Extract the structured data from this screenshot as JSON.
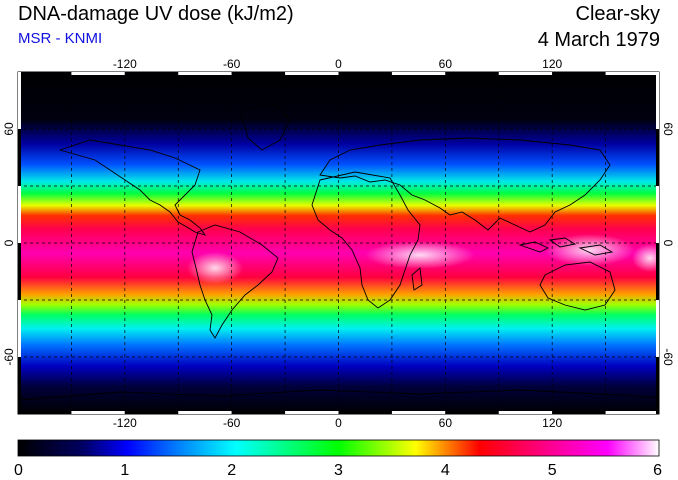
{
  "header": {
    "title": "DNA-damage UV dose (kJ/m2)",
    "source": "MSR - KNMI",
    "sky_type": "Clear-sky",
    "date": "4 March 1979"
  },
  "map": {
    "lon_ticks": [
      "-120",
      "-60",
      "0",
      "60",
      "120"
    ],
    "lat_ticks": [
      "60",
      "0",
      "-60"
    ],
    "lon_values": [
      -120,
      -60,
      0,
      60,
      120
    ],
    "lat_values": [
      60,
      0,
      -60
    ],
    "grid_lon": [
      -150,
      -120,
      -90,
      -60,
      -30,
      0,
      30,
      60,
      90,
      120,
      150
    ],
    "grid_lat": [
      -60,
      -30,
      0,
      30,
      60
    ],
    "lon_range": [
      -180,
      180
    ],
    "lat_range": [
      -90,
      90
    ],
    "gridlines": "dashed"
  },
  "colorbar": {
    "labels": [
      "0",
      "1",
      "2",
      "3",
      "4",
      "5",
      "6"
    ],
    "min": 0,
    "max": 6,
    "stops": [
      "#000000",
      "#00006a",
      "#0000ff",
      "#00ffff",
      "#00ff00",
      "#ffff00",
      "#ff0000",
      "#ff00a0",
      "#ff00ff",
      "#ffffff"
    ],
    "colors": [
      "#000000",
      "#0000ff",
      "#00ffff",
      "#00ff00",
      "#ffff00",
      "#ff0000",
      "#ff00ff",
      "#ffffff"
    ]
  }
}
